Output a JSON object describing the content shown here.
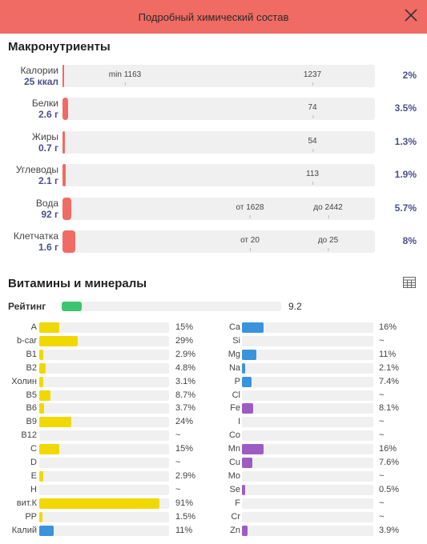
{
  "header": {
    "title": "Подробный химический состав"
  },
  "macros": {
    "title": "Макронутриенты",
    "rows": [
      {
        "name": "Калории",
        "amount": "25 ккал",
        "pct": "2%",
        "fill": 0.02,
        "markers": [
          {
            "text": "min 1163",
            "pos": 0.2
          },
          {
            "text": "1237",
            "pos": 0.8
          }
        ]
      },
      {
        "name": "Белки",
        "amount": "2.6 г",
        "pct": "3.5%",
        "fill": 0.035,
        "markers": [
          {
            "text": "74",
            "pos": 0.8
          }
        ]
      },
      {
        "name": "Жиры",
        "amount": "0.7 г",
        "pct": "1.3%",
        "fill": 0.013,
        "markers": [
          {
            "text": "54",
            "pos": 0.8
          }
        ]
      },
      {
        "name": "Углеводы",
        "amount": "2.1 г",
        "pct": "1.9%",
        "fill": 0.019,
        "markers": [
          {
            "text": "113",
            "pos": 0.8
          }
        ]
      },
      {
        "name": "Вода",
        "amount": "92 г",
        "pct": "5.7%",
        "fill": 0.057,
        "markers": [
          {
            "text": "от 1628",
            "pos": 0.6
          },
          {
            "text": "до 2442",
            "pos": 0.85
          }
        ]
      },
      {
        "name": "Клетчатка",
        "amount": "1.6 г",
        "pct": "8%",
        "fill": 0.08,
        "markers": [
          {
            "text": "от 20",
            "pos": 0.6
          },
          {
            "text": "до 25",
            "pos": 0.85
          }
        ]
      }
    ]
  },
  "vitamins": {
    "title": "Витамины и минералы",
    "table_icon": "table-icon",
    "rating": {
      "label": "Рейтинг",
      "value": "9.2",
      "fill": 0.092,
      "color": "#3cc46e"
    },
    "colors": {
      "vitamin": "#f0d800",
      "mineral": "#3a93dc",
      "trace": "#9c5cc4"
    },
    "left": [
      {
        "name": "A",
        "pct": "15%",
        "fill": 0.15,
        "kind": "vitamin"
      },
      {
        "name": "b-car",
        "pct": "29%",
        "fill": 0.29,
        "kind": "vitamin"
      },
      {
        "name": "B1",
        "pct": "2.9%",
        "fill": 0.029,
        "kind": "vitamin"
      },
      {
        "name": "B2",
        "pct": "4.8%",
        "fill": 0.048,
        "kind": "vitamin"
      },
      {
        "name": "Холин",
        "pct": "3.1%",
        "fill": 0.031,
        "kind": "vitamin"
      },
      {
        "name": "B5",
        "pct": "8.7%",
        "fill": 0.087,
        "kind": "vitamin"
      },
      {
        "name": "B6",
        "pct": "3.7%",
        "fill": 0.037,
        "kind": "vitamin"
      },
      {
        "name": "B9",
        "pct": "24%",
        "fill": 0.24,
        "kind": "vitamin"
      },
      {
        "name": "B12",
        "pct": "~",
        "fill": 0,
        "kind": "vitamin"
      },
      {
        "name": "C",
        "pct": "15%",
        "fill": 0.15,
        "kind": "vitamin"
      },
      {
        "name": "D",
        "pct": "~",
        "fill": 0,
        "kind": "vitamin"
      },
      {
        "name": "E",
        "pct": "2.9%",
        "fill": 0.029,
        "kind": "vitamin"
      },
      {
        "name": "H",
        "pct": "~",
        "fill": 0,
        "kind": "vitamin"
      },
      {
        "name": "вит.К",
        "pct": "91%",
        "fill": 0.91,
        "kind": "vitamin"
      },
      {
        "name": "PP",
        "pct": "1.5%",
        "fill": 0.015,
        "kind": "vitamin"
      },
      {
        "name": "Калий",
        "pct": "11%",
        "fill": 0.11,
        "kind": "mineral"
      }
    ],
    "right": [
      {
        "name": "Ca",
        "pct": "16%",
        "fill": 0.16,
        "kind": "mineral"
      },
      {
        "name": "Si",
        "pct": "~",
        "fill": 0,
        "kind": "mineral"
      },
      {
        "name": "Mg",
        "pct": "11%",
        "fill": 0.11,
        "kind": "mineral"
      },
      {
        "name": "Na",
        "pct": "2.1%",
        "fill": 0.021,
        "kind": "mineral"
      },
      {
        "name": "P",
        "pct": "7.4%",
        "fill": 0.074,
        "kind": "mineral"
      },
      {
        "name": "Cl",
        "pct": "~",
        "fill": 0,
        "kind": "mineral"
      },
      {
        "name": "Fe",
        "pct": "8.1%",
        "fill": 0.081,
        "kind": "trace"
      },
      {
        "name": "I",
        "pct": "~",
        "fill": 0,
        "kind": "trace"
      },
      {
        "name": "Co",
        "pct": "~",
        "fill": 0,
        "kind": "trace"
      },
      {
        "name": "Mn",
        "pct": "16%",
        "fill": 0.16,
        "kind": "trace"
      },
      {
        "name": "Cu",
        "pct": "7.6%",
        "fill": 0.076,
        "kind": "trace"
      },
      {
        "name": "Mo",
        "pct": "~",
        "fill": 0,
        "kind": "trace"
      },
      {
        "name": "Se",
        "pct": "0.5%",
        "fill": 0.005,
        "kind": "trace"
      },
      {
        "name": "F",
        "pct": "~",
        "fill": 0,
        "kind": "trace"
      },
      {
        "name": "Cr",
        "pct": "~",
        "fill": 0,
        "kind": "trace"
      },
      {
        "name": "Zn",
        "pct": "3.9%",
        "fill": 0.039,
        "kind": "trace"
      }
    ]
  }
}
